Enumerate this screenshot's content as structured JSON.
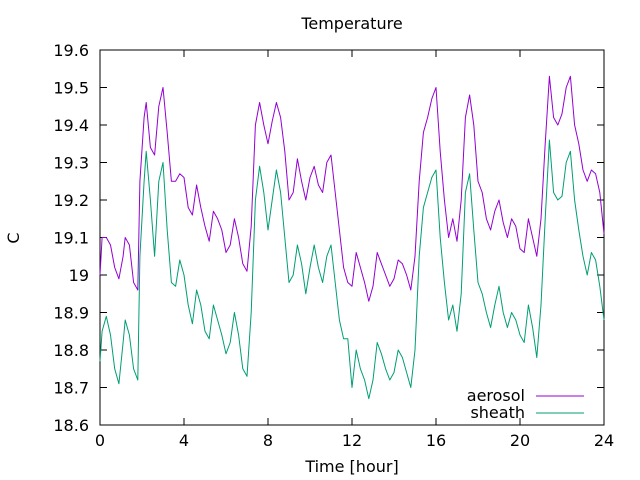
{
  "chart_data": {
    "type": "line",
    "title": "Temperature",
    "xlabel": "Time [hour]",
    "ylabel": "C",
    "xlim": [
      0,
      24
    ],
    "ylim": [
      18.6,
      19.6
    ],
    "x_ticks": [
      0,
      4,
      8,
      12,
      16,
      20,
      24
    ],
    "x_tick_labels": [
      "0",
      "4",
      "8",
      "12",
      "16",
      "20",
      "24"
    ],
    "y_ticks": [
      18.6,
      18.7,
      18.8,
      18.9,
      19.0,
      19.1,
      19.2,
      19.3,
      19.4,
      19.5,
      19.6
    ],
    "y_tick_labels": [
      "18.6",
      "18.7",
      "18.8",
      "18.9",
      "19",
      "19.1",
      "19.2",
      "19.3",
      "19.4",
      "19.5",
      "19.6"
    ],
    "grid": false,
    "legend_position": "bottom-right",
    "series": [
      {
        "name": "aerosol",
        "color": "#9400d3",
        "points": [
          [
            0.0,
            19.0
          ],
          [
            0.1,
            19.1
          ],
          [
            0.3,
            19.1
          ],
          [
            0.5,
            19.08
          ],
          [
            0.7,
            19.02
          ],
          [
            0.9,
            18.99
          ],
          [
            1.1,
            19.05
          ],
          [
            1.2,
            19.1
          ],
          [
            1.4,
            19.08
          ],
          [
            1.6,
            18.98
          ],
          [
            1.8,
            18.96
          ],
          [
            1.9,
            19.25
          ],
          [
            2.1,
            19.42
          ],
          [
            2.2,
            19.46
          ],
          [
            2.4,
            19.34
          ],
          [
            2.6,
            19.32
          ],
          [
            2.8,
            19.45
          ],
          [
            3.0,
            19.5
          ],
          [
            3.2,
            19.38
          ],
          [
            3.4,
            19.25
          ],
          [
            3.6,
            19.25
          ],
          [
            3.8,
            19.27
          ],
          [
            4.0,
            19.26
          ],
          [
            4.2,
            19.18
          ],
          [
            4.4,
            19.16
          ],
          [
            4.6,
            19.24
          ],
          [
            4.8,
            19.18
          ],
          [
            5.0,
            19.13
          ],
          [
            5.2,
            19.09
          ],
          [
            5.4,
            19.17
          ],
          [
            5.6,
            19.15
          ],
          [
            5.8,
            19.12
          ],
          [
            6.0,
            19.06
          ],
          [
            6.2,
            19.08
          ],
          [
            6.4,
            19.15
          ],
          [
            6.6,
            19.1
          ],
          [
            6.8,
            19.03
          ],
          [
            7.0,
            19.01
          ],
          [
            7.2,
            19.13
          ],
          [
            7.4,
            19.4
          ],
          [
            7.6,
            19.46
          ],
          [
            7.8,
            19.4
          ],
          [
            8.0,
            19.35
          ],
          [
            8.2,
            19.41
          ],
          [
            8.4,
            19.46
          ],
          [
            8.6,
            19.42
          ],
          [
            8.8,
            19.33
          ],
          [
            9.0,
            19.2
          ],
          [
            9.2,
            19.22
          ],
          [
            9.4,
            19.31
          ],
          [
            9.6,
            19.25
          ],
          [
            9.8,
            19.2
          ],
          [
            10.0,
            19.26
          ],
          [
            10.2,
            19.29
          ],
          [
            10.4,
            19.24
          ],
          [
            10.6,
            19.22
          ],
          [
            10.8,
            19.3
          ],
          [
            11.0,
            19.32
          ],
          [
            11.2,
            19.22
          ],
          [
            11.4,
            19.12
          ],
          [
            11.6,
            19.02
          ],
          [
            11.8,
            18.98
          ],
          [
            12.0,
            18.97
          ],
          [
            12.2,
            19.06
          ],
          [
            12.4,
            19.02
          ],
          [
            12.6,
            18.98
          ],
          [
            12.8,
            18.93
          ],
          [
            13.0,
            18.97
          ],
          [
            13.2,
            19.06
          ],
          [
            13.4,
            19.03
          ],
          [
            13.6,
            19.0
          ],
          [
            13.8,
            18.97
          ],
          [
            14.0,
            18.99
          ],
          [
            14.2,
            19.04
          ],
          [
            14.4,
            19.03
          ],
          [
            14.6,
            19.0
          ],
          [
            14.8,
            18.96
          ],
          [
            15.0,
            19.05
          ],
          [
            15.2,
            19.25
          ],
          [
            15.4,
            19.38
          ],
          [
            15.6,
            19.42
          ],
          [
            15.8,
            19.47
          ],
          [
            16.0,
            19.5
          ],
          [
            16.2,
            19.33
          ],
          [
            16.4,
            19.2
          ],
          [
            16.6,
            19.1
          ],
          [
            16.8,
            19.15
          ],
          [
            17.0,
            19.09
          ],
          [
            17.2,
            19.2
          ],
          [
            17.4,
            19.42
          ],
          [
            17.6,
            19.48
          ],
          [
            17.8,
            19.4
          ],
          [
            18.0,
            19.25
          ],
          [
            18.2,
            19.22
          ],
          [
            18.4,
            19.15
          ],
          [
            18.6,
            19.12
          ],
          [
            18.8,
            19.17
          ],
          [
            19.0,
            19.2
          ],
          [
            19.2,
            19.14
          ],
          [
            19.4,
            19.1
          ],
          [
            19.6,
            19.15
          ],
          [
            19.8,
            19.13
          ],
          [
            20.0,
            19.07
          ],
          [
            20.2,
            19.06
          ],
          [
            20.4,
            19.15
          ],
          [
            20.6,
            19.1
          ],
          [
            20.8,
            19.05
          ],
          [
            21.0,
            19.15
          ],
          [
            21.2,
            19.35
          ],
          [
            21.4,
            19.53
          ],
          [
            21.6,
            19.42
          ],
          [
            21.8,
            19.4
          ],
          [
            22.0,
            19.43
          ],
          [
            22.2,
            19.5
          ],
          [
            22.4,
            19.53
          ],
          [
            22.6,
            19.4
          ],
          [
            22.8,
            19.35
          ],
          [
            23.0,
            19.28
          ],
          [
            23.2,
            19.25
          ],
          [
            23.4,
            19.28
          ],
          [
            23.6,
            19.27
          ],
          [
            23.8,
            19.22
          ],
          [
            24.0,
            19.11
          ]
        ]
      },
      {
        "name": "sheath",
        "color": "#009e73",
        "points": [
          [
            0.0,
            18.77
          ],
          [
            0.1,
            18.85
          ],
          [
            0.3,
            18.89
          ],
          [
            0.5,
            18.84
          ],
          [
            0.7,
            18.75
          ],
          [
            0.9,
            18.71
          ],
          [
            1.1,
            18.82
          ],
          [
            1.2,
            18.88
          ],
          [
            1.4,
            18.84
          ],
          [
            1.6,
            18.75
          ],
          [
            1.8,
            18.72
          ],
          [
            1.9,
            19.05
          ],
          [
            2.1,
            19.25
          ],
          [
            2.2,
            19.33
          ],
          [
            2.4,
            19.2
          ],
          [
            2.6,
            19.05
          ],
          [
            2.8,
            19.25
          ],
          [
            3.0,
            19.3
          ],
          [
            3.2,
            19.12
          ],
          [
            3.4,
            18.98
          ],
          [
            3.6,
            18.97
          ],
          [
            3.8,
            19.04
          ],
          [
            4.0,
            19.0
          ],
          [
            4.2,
            18.92
          ],
          [
            4.4,
            18.87
          ],
          [
            4.6,
            18.96
          ],
          [
            4.8,
            18.92
          ],
          [
            5.0,
            18.85
          ],
          [
            5.2,
            18.83
          ],
          [
            5.4,
            18.92
          ],
          [
            5.6,
            18.88
          ],
          [
            5.8,
            18.84
          ],
          [
            6.0,
            18.79
          ],
          [
            6.2,
            18.82
          ],
          [
            6.4,
            18.9
          ],
          [
            6.6,
            18.84
          ],
          [
            6.8,
            18.75
          ],
          [
            7.0,
            18.73
          ],
          [
            7.2,
            18.9
          ],
          [
            7.4,
            19.2
          ],
          [
            7.6,
            19.29
          ],
          [
            7.8,
            19.22
          ],
          [
            8.0,
            19.12
          ],
          [
            8.2,
            19.2
          ],
          [
            8.4,
            19.28
          ],
          [
            8.6,
            19.22
          ],
          [
            8.8,
            19.1
          ],
          [
            9.0,
            18.98
          ],
          [
            9.2,
            19.0
          ],
          [
            9.4,
            19.08
          ],
          [
            9.6,
            19.03
          ],
          [
            9.8,
            18.95
          ],
          [
            10.0,
            19.02
          ],
          [
            10.2,
            19.08
          ],
          [
            10.4,
            19.02
          ],
          [
            10.6,
            18.98
          ],
          [
            10.8,
            19.05
          ],
          [
            11.0,
            19.08
          ],
          [
            11.2,
            18.98
          ],
          [
            11.4,
            18.88
          ],
          [
            11.6,
            18.83
          ],
          [
            11.8,
            18.83
          ],
          [
            12.0,
            18.7
          ],
          [
            12.2,
            18.8
          ],
          [
            12.4,
            18.75
          ],
          [
            12.6,
            18.72
          ],
          [
            12.8,
            18.67
          ],
          [
            13.0,
            18.72
          ],
          [
            13.2,
            18.82
          ],
          [
            13.4,
            18.79
          ],
          [
            13.6,
            18.75
          ],
          [
            13.8,
            18.72
          ],
          [
            14.0,
            18.74
          ],
          [
            14.2,
            18.8
          ],
          [
            14.4,
            18.78
          ],
          [
            14.6,
            18.74
          ],
          [
            14.8,
            18.7
          ],
          [
            15.0,
            18.8
          ],
          [
            15.2,
            19.05
          ],
          [
            15.4,
            19.18
          ],
          [
            15.6,
            19.22
          ],
          [
            15.8,
            19.26
          ],
          [
            16.0,
            19.28
          ],
          [
            16.2,
            19.1
          ],
          [
            16.4,
            18.98
          ],
          [
            16.6,
            18.88
          ],
          [
            16.8,
            18.92
          ],
          [
            17.0,
            18.85
          ],
          [
            17.2,
            18.95
          ],
          [
            17.4,
            19.22
          ],
          [
            17.6,
            19.27
          ],
          [
            17.8,
            19.12
          ],
          [
            18.0,
            18.98
          ],
          [
            18.2,
            18.95
          ],
          [
            18.4,
            18.9
          ],
          [
            18.6,
            18.86
          ],
          [
            18.8,
            18.92
          ],
          [
            19.0,
            18.97
          ],
          [
            19.2,
            18.9
          ],
          [
            19.4,
            18.86
          ],
          [
            19.6,
            18.9
          ],
          [
            19.8,
            18.88
          ],
          [
            20.0,
            18.84
          ],
          [
            20.2,
            18.82
          ],
          [
            20.4,
            18.92
          ],
          [
            20.6,
            18.86
          ],
          [
            20.8,
            18.78
          ],
          [
            21.0,
            18.92
          ],
          [
            21.2,
            19.15
          ],
          [
            21.4,
            19.36
          ],
          [
            21.6,
            19.22
          ],
          [
            21.8,
            19.2
          ],
          [
            22.0,
            19.21
          ],
          [
            22.2,
            19.3
          ],
          [
            22.4,
            19.33
          ],
          [
            22.6,
            19.2
          ],
          [
            22.8,
            19.12
          ],
          [
            23.0,
            19.05
          ],
          [
            23.2,
            19.0
          ],
          [
            23.4,
            19.06
          ],
          [
            23.6,
            19.04
          ],
          [
            23.8,
            18.97
          ],
          [
            24.0,
            18.88
          ]
        ]
      }
    ]
  }
}
